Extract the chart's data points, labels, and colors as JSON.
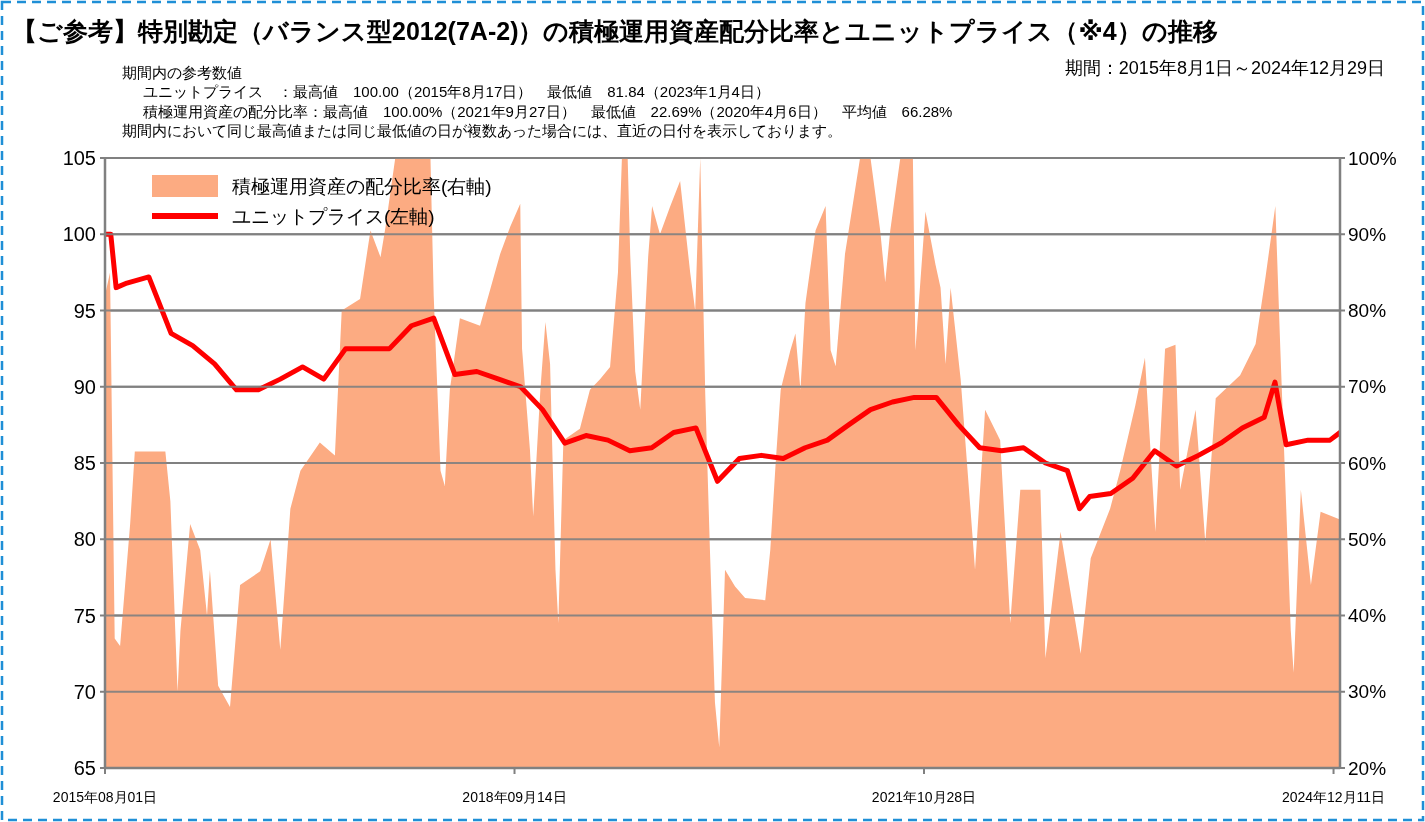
{
  "chart_data": {
    "type": "line",
    "title": "【ご参考】特別勘定（バランス型2012(7A-2)）の積極運用資産配分比率とユニットプライス（※4）の推移",
    "subtitle": "期間：2015年8月1日～2024年12月29日",
    "annotations": [
      "期間内の参考数値",
      "ユニットプライス　：最高値　100.00（2015年8月17日）　最低値　81.84（2023年1月4日）",
      "積極運用資産の配分比率：最高値　100.00%（2021年9月27日）　最低値　22.69%（2020年4月6日）　平均値　66.28%",
      "期間内において同じ最高値または同じ最低値の日が複数あった場合には、直近の日付を表示しております。"
    ],
    "xlim": [
      "2015-08-01",
      "2024-12-29"
    ],
    "xticks": [
      {
        "value": "2015-08-01",
        "label": "2015年08月01日"
      },
      {
        "value": "2018-09-14",
        "label": "2018年09月14日"
      },
      {
        "value": "2021-10-28",
        "label": "2021年10月28日"
      },
      {
        "value": "2024-12-11",
        "label": "2024年12月11日"
      }
    ],
    "ylim": [
      65,
      105
    ],
    "yticks": [
      65,
      70,
      75,
      80,
      85,
      90,
      95,
      100,
      105
    ],
    "y2lim": [
      20,
      100
    ],
    "y2ticks": [
      {
        "value": 20,
        "label": "20%"
      },
      {
        "value": 30,
        "label": "30%"
      },
      {
        "value": 40,
        "label": "40%"
      },
      {
        "value": 50,
        "label": "50%"
      },
      {
        "value": 60,
        "label": "60%"
      },
      {
        "value": 70,
        "label": "70%"
      },
      {
        "value": 80,
        "label": "80%"
      },
      {
        "value": 90,
        "label": "90%"
      },
      {
        "value": 100,
        "label": "100%"
      }
    ],
    "grid": "y",
    "legend": "top left",
    "line_style": "solid",
    "series": [
      {
        "name": "積極運用資産の配分比率(右軸)",
        "type": "area",
        "axis": "y2",
        "color": "#fcab82",
        "x": [
          "2015-08-01",
          "2015-08-15",
          "2015-08-28",
          "2015-09-12",
          "2015-10-10",
          "2015-10-23",
          "2016-01-16",
          "2016-01-30",
          "2016-02-19",
          "2016-02-27",
          "2016-03-25",
          "2016-04-22",
          "2016-05-11",
          "2016-05-19",
          "2016-06-11",
          "2016-07-14",
          "2016-08-11",
          "2016-10-06",
          "2016-11-04",
          "2016-12-01",
          "2016-12-29",
          "2017-01-26",
          "2017-03-21",
          "2017-05-02",
          "2017-05-21",
          "2017-07-11",
          "2017-08-09",
          "2017-09-06",
          "2017-09-20",
          "2017-10-17",
          "2018-01-23",
          "2018-02-01",
          "2018-02-20",
          "2018-03-04",
          "2018-03-18",
          "2018-04-15",
          "2018-06-10",
          "2018-08-05",
          "2018-09-02",
          "2018-09-30",
          "2018-10-05",
          "2018-10-27",
          "2018-11-05",
          "2018-11-25",
          "2018-12-09",
          "2018-12-22",
          "2019-01-06",
          "2019-01-14",
          "2019-01-28",
          "2019-03-15",
          "2019-04-12",
          "2019-05-10",
          "2019-06-07",
          "2019-06-29",
          "2019-07-10",
          "2019-07-26",
          "2019-08-02",
          "2019-08-16",
          "2019-08-30",
          "2019-09-21",
          "2019-10-02",
          "2019-10-24",
          "2019-11-21",
          "2019-12-19",
          "2020-01-16",
          "2020-01-30",
          "2020-02-13",
          "2020-02-27",
          "2020-03-11",
          "2020-03-25",
          "2020-04-06",
          "2020-04-22",
          "2020-05-20",
          "2020-06-17",
          "2020-08-12",
          "2020-08-26",
          "2020-09-10",
          "2020-09-24",
          "2020-10-21",
          "2020-11-04",
          "2020-11-18",
          "2020-12-02",
          "2020-12-30",
          "2021-01-27",
          "2021-02-10",
          "2021-02-24",
          "2021-03-22",
          "2021-04-19",
          "2021-05-03",
          "2021-06-01",
          "2021-06-28",
          "2021-07-12",
          "2021-07-26",
          "2021-08-23",
          "2021-09-20",
          "2021-09-27",
          "2021-10-04",
          "2021-11-01",
          "2021-11-29",
          "2021-12-13",
          "2021-12-27",
          "2022-01-10",
          "2022-02-07",
          "2022-03-19",
          "2022-04-16",
          "2022-05-28",
          "2022-06-25",
          "2022-07-23",
          "2022-09-17",
          "2022-10-01",
          "2022-11-12",
          "2023-01-07",
          "2023-02-04",
          "2023-03-30",
          "2023-04-27",
          "2023-06-08",
          "2023-07-05",
          "2023-08-03",
          "2023-08-30",
          "2023-09-28",
          "2023-10-11",
          "2023-11-23",
          "2023-12-20",
          "2024-01-18",
          "2024-03-26",
          "2024-05-08",
          "2024-06-05",
          "2024-07-02",
          "2024-07-16",
          "2024-08-14",
          "2024-08-22",
          "2024-09-11",
          "2024-10-09",
          "2024-11-05",
          "2024-12-29"
        ],
        "values": [
          82,
          85,
          37,
          36,
          52,
          61.5,
          61.5,
          55,
          30,
          38,
          52,
          48.6,
          40,
          46,
          30.8,
          28,
          44,
          45.8,
          50,
          35.5,
          54,
          59,
          62.7,
          61,
          80,
          81.5,
          90.5,
          87,
          91,
          100,
          100,
          82,
          59,
          57,
          69.6,
          79,
          78,
          87.4,
          91,
          94,
          75,
          61.7,
          53,
          69.6,
          78.5,
          73,
          46,
          39,
          63,
          64.5,
          69.6,
          71,
          72.6,
          85,
          100,
          100,
          87.4,
          72,
          67,
          87,
          93.7,
          90,
          93.6,
          97,
          85,
          80,
          100,
          69,
          48.6,
          28.6,
          22.7,
          46,
          43.8,
          42.3,
          42,
          48.6,
          60,
          69.6,
          74.8,
          77,
          69.6,
          81,
          90.5,
          93.7,
          74.8,
          72.7,
          87.4,
          95.8,
          100,
          100,
          90.5,
          83.7,
          90.5,
          100,
          100,
          100,
          74.8,
          93,
          86,
          83,
          73,
          83,
          71,
          46,
          67,
          63,
          39,
          56.5,
          56.5,
          34.4,
          51,
          35,
          47.5,
          54,
          59,
          67.5,
          73.8,
          51,
          75,
          75.5,
          56.5,
          67,
          49.6,
          68.5,
          71.5,
          75.6,
          84.5,
          93.7,
          74.8,
          38,
          32.5,
          56.5,
          44,
          53.6,
          52.6
        ]
      },
      {
        "name": "ユニットプライス(左軸)",
        "color": "#ff0000",
        "x": [
          "2015-08-01",
          "2015-08-17",
          "2015-09-01",
          "2015-10-01",
          "2015-12-01",
          "2016-02-01",
          "2016-04-01",
          "2016-06-01",
          "2016-08-01",
          "2016-10-01",
          "2016-12-01",
          "2017-02-01",
          "2017-04-01",
          "2017-06-01",
          "2017-08-01",
          "2017-10-01",
          "2017-12-01",
          "2018-02-01",
          "2018-04-01",
          "2018-06-01",
          "2018-08-01",
          "2018-10-01",
          "2018-12-01",
          "2019-02-01",
          "2019-04-01",
          "2019-06-01",
          "2019-08-01",
          "2019-10-01",
          "2019-12-01",
          "2020-02-01",
          "2020-04-01",
          "2020-06-01",
          "2020-08-01",
          "2020-10-01",
          "2020-12-01",
          "2021-02-01",
          "2021-04-01",
          "2021-06-01",
          "2021-08-01",
          "2021-10-01",
          "2021-12-01",
          "2022-02-01",
          "2022-04-01",
          "2022-06-01",
          "2022-08-01",
          "2022-10-01",
          "2022-12-01",
          "2023-01-04",
          "2023-02-01",
          "2023-04-01",
          "2023-06-01",
          "2023-08-01",
          "2023-10-01",
          "2023-12-01",
          "2024-02-01",
          "2024-04-01",
          "2024-06-01",
          "2024-07-01",
          "2024-08-01",
          "2024-10-01",
          "2024-12-01",
          "2024-12-29"
        ],
        "values": [
          100,
          100,
          96.5,
          96.8,
          97.2,
          93.5,
          92.7,
          91.5,
          89.8,
          89.8,
          90.5,
          91.3,
          90.5,
          92.5,
          92.5,
          92.5,
          94,
          94.5,
          90.8,
          91,
          90.5,
          90,
          88.5,
          86.3,
          86.8,
          86.5,
          85.8,
          86,
          87,
          87.3,
          83.8,
          85.3,
          85.5,
          85.3,
          86,
          86.5,
          87.5,
          88.5,
          89,
          89.3,
          89.3,
          87.5,
          86,
          85.8,
          86,
          85,
          84.5,
          82,
          82.8,
          83,
          84,
          85.8,
          84.8,
          85.5,
          86.3,
          87.3,
          88,
          90.3,
          86.2,
          86.5,
          86.5,
          87
        ]
      }
    ]
  }
}
